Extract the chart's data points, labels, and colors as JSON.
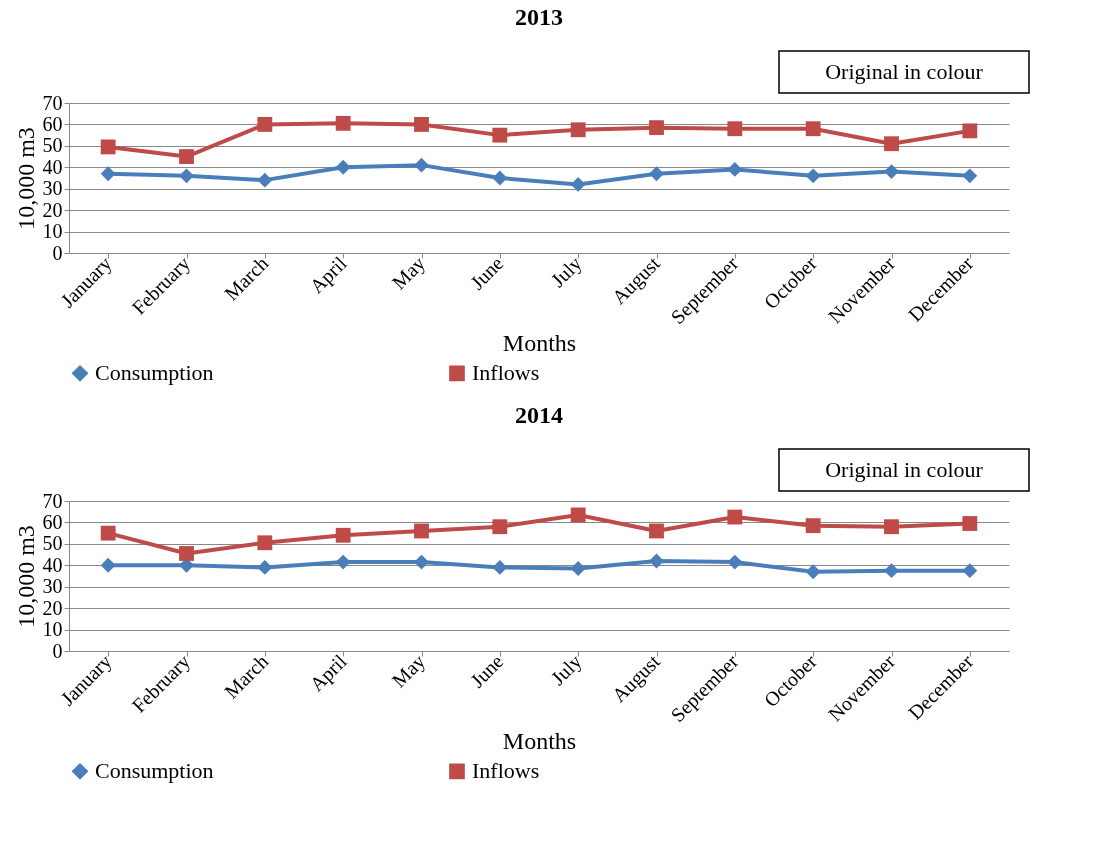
{
  "chart_data": [
    {
      "type": "line",
      "title": "2013",
      "xlabel": "Months",
      "ylabel": "10,000 m3",
      "annotations": [
        "Original in colour"
      ],
      "categories": [
        "January",
        "February",
        "March",
        "April",
        "May",
        "June",
        "July",
        "August",
        "September",
        "October",
        "November",
        "December"
      ],
      "series": [
        {
          "name": "Consumption",
          "color": "#4a7ebb",
          "marker": "diamond",
          "values": [
            37,
            36,
            34,
            40,
            41,
            35,
            32,
            37,
            39,
            36,
            38,
            36
          ]
        },
        {
          "name": "Inflows",
          "color": "#be4b48",
          "marker": "square",
          "values": [
            49.5,
            45,
            60,
            60.5,
            60,
            55,
            57.5,
            58.5,
            58,
            58,
            51,
            57
          ]
        }
      ],
      "ylim": [
        0,
        70
      ],
      "yticks": [
        0,
        10,
        20,
        30,
        40,
        50,
        60,
        70
      ],
      "grid": "y",
      "legend": "bottom",
      "line_style": "solid"
    },
    {
      "type": "line",
      "title": "2014",
      "xlabel": "Months",
      "ylabel": "10,000 m3",
      "annotations": [
        "Original in colour"
      ],
      "categories": [
        "January",
        "February",
        "March",
        "April",
        "May",
        "June",
        "July",
        "August",
        "September",
        "October",
        "November",
        "December"
      ],
      "series": [
        {
          "name": "Consumption",
          "color": "#4a7ebb",
          "marker": "diamond",
          "values": [
            40,
            40,
            39,
            41.5,
            41.5,
            39,
            38.5,
            42,
            41.5,
            37,
            37.5,
            37.5
          ]
        },
        {
          "name": "Inflows",
          "color": "#be4b48",
          "marker": "square",
          "values": [
            55,
            45.5,
            50.5,
            54,
            56,
            58,
            63.5,
            56,
            62.5,
            58.5,
            58,
            59.5
          ]
        }
      ],
      "ylim": [
        0,
        70
      ],
      "yticks": [
        0,
        10,
        20,
        30,
        40,
        50,
        60,
        70
      ],
      "grid": "y",
      "legend": "bottom",
      "line_style": "solid"
    }
  ]
}
